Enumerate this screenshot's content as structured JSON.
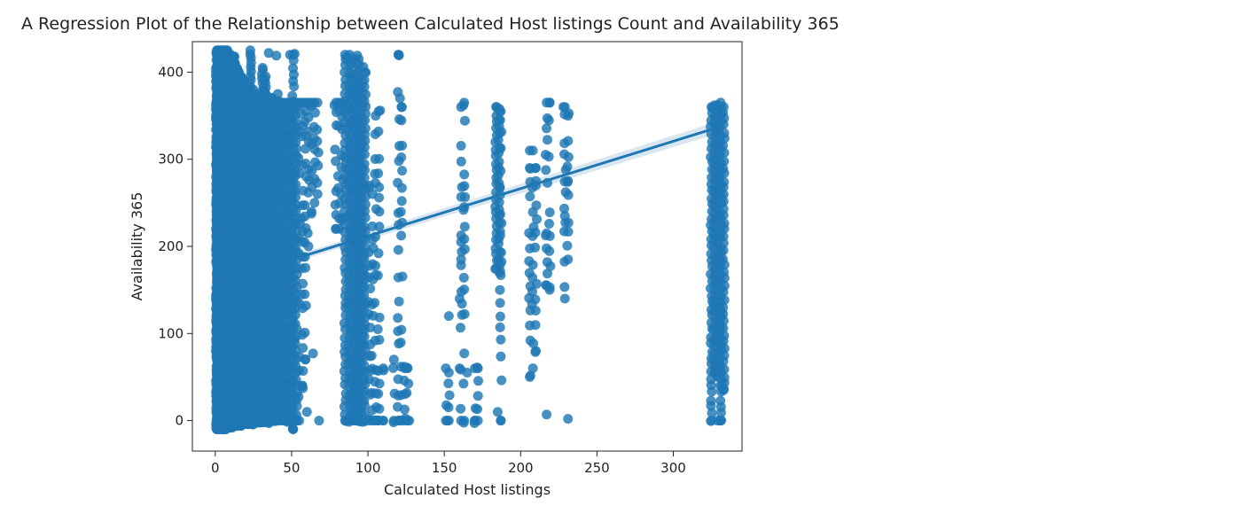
{
  "chart_data": {
    "type": "scatter",
    "title": "A Regression Plot of the Relationship between Calculated Host listings Count and Availability 365",
    "xlabel": "Calculated Host listings",
    "ylabel": "Availability 365",
    "xlim": [
      -15,
      345
    ],
    "ylim": [
      -35,
      435
    ],
    "xticks": [
      0,
      50,
      100,
      150,
      200,
      250,
      300
    ],
    "yticks": [
      0,
      100,
      200,
      300,
      400
    ],
    "grid": false,
    "colors": {
      "points": "#1f77b4",
      "regression": "#1f77b4",
      "ci_band": "#1f77b4"
    },
    "regression": {
      "x": [
        1,
        330
      ],
      "y": [
        158,
        337
      ]
    },
    "series": [
      {
        "columns": [
          {
            "x": 1,
            "y": [
              -10,
              425
            ],
            "density": "solid"
          },
          {
            "x": 2,
            "y": [
              -10,
              425
            ],
            "density": "solid"
          },
          {
            "x": 3,
            "y": [
              -10,
              425
            ],
            "density": "solid"
          },
          {
            "x": 4,
            "y": [
              -10,
              425
            ],
            "density": "solid"
          },
          {
            "x": 5,
            "y": [
              -10,
              425
            ],
            "density": "solid"
          },
          {
            "x": 6,
            "y": [
              -10,
              425
            ],
            "density": "solid"
          },
          {
            "x": 7,
            "y": [
              -10,
              425
            ],
            "density": "solid"
          },
          {
            "x": 8,
            "y": [
              -8,
              425
            ],
            "density": "solid"
          },
          {
            "x": 9,
            "y": [
              -8,
              420
            ],
            "density": "solid"
          },
          {
            "x": 10,
            "y": [
              -8,
              420
            ],
            "density": "solid"
          },
          {
            "x": 11,
            "y": [
              -8,
              418
            ],
            "density": "solid"
          },
          {
            "x": 12,
            "y": [
              -6,
              418
            ],
            "density": "solid"
          },
          {
            "x": 13,
            "y": [
              -6,
              410
            ],
            "density": "solid"
          },
          {
            "x": 14,
            "y": [
              -6,
              405
            ],
            "density": "solid"
          },
          {
            "x": 15,
            "y": [
              -6,
              400
            ],
            "density": "solid"
          },
          {
            "x": 17,
            "y": [
              -6,
              395
            ],
            "density": "solid"
          },
          {
            "x": 19,
            "y": [
              -4,
              390
            ],
            "density": "solid"
          },
          {
            "x": 21,
            "y": [
              -4,
              385
            ],
            "density": "solid"
          },
          {
            "x": 23,
            "y": [
              -4,
              425
            ],
            "density": "dense"
          },
          {
            "x": 25,
            "y": [
              -4,
              380
            ],
            "density": "dense"
          },
          {
            "x": 27,
            "y": [
              -2,
              375
            ],
            "density": "dense"
          },
          {
            "x": 29,
            "y": [
              -2,
              370
            ],
            "density": "dense"
          },
          {
            "x": 31,
            "y": [
              -2,
              405
            ],
            "density": "dense"
          },
          {
            "x": 33,
            "y": [
              -2,
              395
            ],
            "density": "dense"
          },
          {
            "x": 35,
            "y": [
              -2,
              365
            ],
            "density": "dense"
          },
          {
            "x": 37,
            "y": [
              0,
              370
            ],
            "density": "dense"
          },
          {
            "x": 39,
            "y": [
              0,
              365
            ],
            "density": "dense"
          },
          {
            "x": 41,
            "y": [
              0,
              375
            ],
            "density": "medium"
          },
          {
            "x": 43,
            "y": [
              0,
              365
            ],
            "density": "medium"
          },
          {
            "x": 45,
            "y": [
              0,
              365
            ],
            "density": "medium"
          },
          {
            "x": 47,
            "y": [
              0,
              365
            ],
            "density": "medium"
          },
          {
            "x": 49,
            "y": [
              0,
              365
            ],
            "density": "medium"
          },
          {
            "x": 51,
            "y": [
              -10,
              420
            ],
            "density": "medium"
          },
          {
            "x": 53,
            "y": [
              0,
              365
            ],
            "density": "medium"
          },
          {
            "x": 55,
            "y": [
              0,
              365
            ],
            "density": "sparse"
          },
          {
            "x": 57,
            "y": [
              40,
              365
            ],
            "density": "sparse"
          },
          {
            "x": 59,
            "y": [
              70,
              365
            ],
            "density": "sparse"
          },
          {
            "x": 61,
            "y": [
              200,
              365
            ],
            "density": "sparse"
          },
          {
            "x": 63,
            "y": [
              240,
              365
            ],
            "density": "sparse"
          },
          {
            "x": 65,
            "y": [
              250,
              365
            ],
            "density": "sparse"
          },
          {
            "x": 67,
            "y": [
              260,
              365
            ],
            "density": "sparse"
          },
          {
            "x": 79,
            "y": [
              220,
              365
            ],
            "density": "sparse"
          },
          {
            "x": 81,
            "y": [
              220,
              365
            ],
            "density": "sparse"
          },
          {
            "x": 83,
            "y": [
              230,
              365
            ],
            "density": "sparse"
          },
          {
            "x": 85,
            "y": [
              0,
              420
            ],
            "density": "medium"
          },
          {
            "x": 88,
            "y": [
              0,
              420
            ],
            "density": "medium"
          },
          {
            "x": 90,
            "y": [
              0,
              415
            ],
            "density": "medium"
          },
          {
            "x": 92,
            "y": [
              0,
              415
            ],
            "density": "medium"
          },
          {
            "x": 94,
            "y": [
              0,
              415
            ],
            "density": "medium"
          },
          {
            "x": 96,
            "y": [
              0,
              390
            ],
            "density": "medium"
          },
          {
            "x": 98,
            "y": [
              0,
              400
            ],
            "density": "medium"
          },
          {
            "x": 101,
            "y": [
              0,
              270
            ],
            "density": "sparse"
          },
          {
            "x": 103,
            "y": [
              0,
              260
            ],
            "density": "sparse"
          },
          {
            "x": 105,
            "y": [
              0,
              350
            ],
            "density": "sparse"
          },
          {
            "x": 107,
            "y": [
              0,
              355
            ],
            "density": "sparse"
          },
          {
            "x": 110,
            "y": [
              0,
              60
            ],
            "density": "sparse"
          },
          {
            "x": 117,
            "y": [
              0,
              70
            ],
            "density": "sparse"
          },
          {
            "x": 120,
            "y": [
              0,
              420
            ],
            "density": "sparse"
          },
          {
            "x": 122,
            "y": [
              0,
              360
            ],
            "density": "sparse"
          },
          {
            "x": 124,
            "y": [
              0,
              60
            ],
            "density": "sparse"
          },
          {
            "x": 126,
            "y": [
              0,
              60
            ],
            "density": "sparse"
          },
          {
            "x": 151,
            "y": [
              0,
              60
            ],
            "density": "sparse"
          },
          {
            "x": 153,
            "y": [
              0,
              55
            ],
            "density": "sparse"
          },
          {
            "x": 161,
            "y": [
              0,
              360
            ],
            "density": "sparse"
          },
          {
            "x": 163,
            "y": [
              0,
              365
            ],
            "density": "sparse"
          },
          {
            "x": 170,
            "y": [
              0,
              60
            ],
            "density": "sparse"
          },
          {
            "x": 172,
            "y": [
              0,
              60
            ],
            "density": "sparse"
          },
          {
            "x": 184,
            "y": [
              175,
              360
            ],
            "density": "medium"
          },
          {
            "x": 186,
            "y": [
              170,
              358
            ],
            "density": "medium"
          },
          {
            "x": 187,
            "y": [
              0,
              355
            ],
            "density": "sparse"
          },
          {
            "x": 206,
            "y": [
              50,
              290
            ],
            "density": "sparse"
          },
          {
            "x": 208,
            "y": [
              60,
              310
            ],
            "density": "sparse"
          },
          {
            "x": 210,
            "y": [
              80,
              290
            ],
            "density": "sparse"
          },
          {
            "x": 217,
            "y": [
              155,
              365
            ],
            "density": "sparse"
          },
          {
            "x": 219,
            "y": [
              150,
              365
            ],
            "density": "sparse"
          },
          {
            "x": 229,
            "y": [
              140,
              360
            ],
            "density": "sparse"
          },
          {
            "x": 231,
            "y": [
              185,
              350
            ],
            "density": "sparse"
          },
          {
            "x": 325,
            "y": [
              0,
              360
            ],
            "density": "medium"
          },
          {
            "x": 327,
            "y": [
              55,
              362
            ],
            "density": "medium"
          },
          {
            "x": 329,
            "y": [
              50,
              362
            ],
            "density": "medium"
          },
          {
            "x": 331,
            "y": [
              0,
              365
            ],
            "density": "medium"
          },
          {
            "x": 333,
            "y": [
              35,
              360
            ],
            "density": "medium"
          }
        ],
        "points": [
          [
            35,
            422
          ],
          [
            40,
            419
          ],
          [
            49,
            420
          ],
          [
            52,
            421
          ],
          [
            86,
            417
          ],
          [
            93,
            419
          ],
          [
            97,
            406
          ],
          [
            120,
            420
          ],
          [
            108,
            356
          ],
          [
            121,
            370
          ],
          [
            153,
            120
          ],
          [
            160,
            140
          ],
          [
            187,
            93
          ],
          [
            217,
            7
          ],
          [
            231,
            2
          ],
          [
            62,
            362
          ],
          [
            78,
            362
          ],
          [
            160,
            60
          ],
          [
            165,
            55
          ],
          [
            185,
            10
          ],
          [
            219,
            365
          ],
          [
            228,
            360
          ],
          [
            206,
            310
          ],
          [
            210,
            270
          ],
          [
            231,
            275
          ],
          [
            229,
            235
          ],
          [
            217,
            215
          ],
          [
            163,
            245
          ],
          [
            161,
            185
          ],
          [
            161,
            205
          ],
          [
            331,
            185
          ],
          [
            331,
            125
          ],
          [
            331,
            85
          ],
          [
            332,
            40
          ],
          [
            331,
            0
          ],
          [
            329,
            0
          ],
          [
            45,
            10
          ],
          [
            57,
            40
          ],
          [
            64,
            77
          ],
          [
            68,
            0
          ],
          [
            96,
            90
          ],
          [
            110,
            0
          ],
          [
            121,
            0
          ],
          [
            127,
            0
          ],
          [
            152,
            0
          ],
          [
            170,
            0
          ],
          [
            187,
            0
          ],
          [
            51,
            -10
          ],
          [
            60,
            10
          ]
        ]
      }
    ]
  }
}
